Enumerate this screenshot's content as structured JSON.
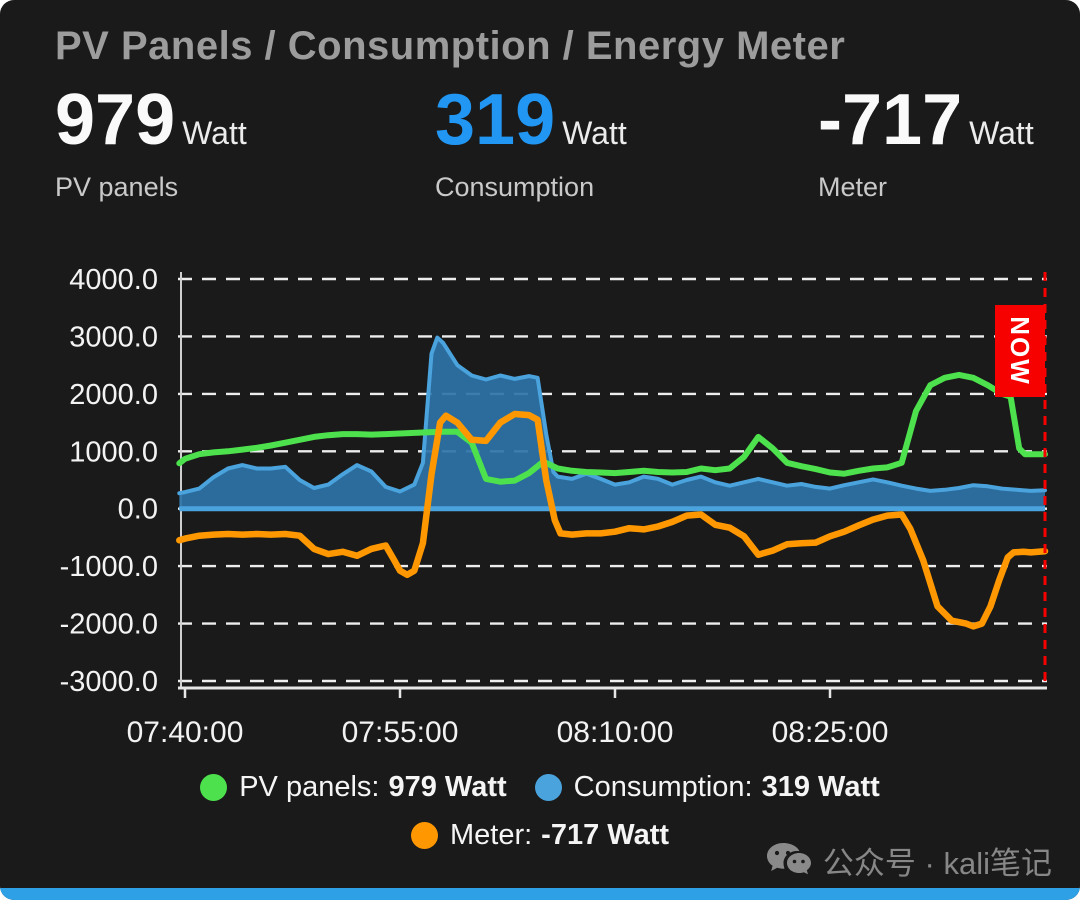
{
  "card": {
    "title": "PV Panels / Consumption / Energy Meter"
  },
  "stats": [
    {
      "value": "979",
      "unit": "Watt",
      "label": "PV panels",
      "color": "#fafafa"
    },
    {
      "value": "319",
      "unit": "Watt",
      "label": "Consumption",
      "color": "#2196f3"
    },
    {
      "value": "-717",
      "unit": "Watt",
      "label": "Meter",
      "color": "#fafafa"
    }
  ],
  "chart_data": {
    "type": "area",
    "title": "",
    "grid": "dashed-horizontal",
    "legend_position": "bottom",
    "x_axis": {
      "tick_minutes": [
        0,
        15,
        30,
        45
      ],
      "tick_labels": [
        "07:40:00",
        "07:55:00",
        "08:10:00",
        "08:25:00"
      ],
      "range_minutes": [
        -0.4,
        60
      ]
    },
    "y_axis": {
      "ticks": [
        4000,
        3000,
        2000,
        1000,
        0,
        -1000,
        -2000,
        -3000
      ],
      "tick_labels": [
        "4000.0",
        "3000.0",
        "2000.0",
        "1000.0",
        "0.0",
        "-1000.0",
        "-2000.0",
        "-3000.0"
      ],
      "ylim": [
        -3150,
        4150
      ]
    },
    "now_marker": {
      "label": "NOW",
      "x_minutes": 60,
      "color": "#f60000"
    },
    "series": [
      {
        "name": "PV panels",
        "unit": "Watt",
        "current": 979,
        "style": "line",
        "color": "#4de24d",
        "points": [
          [
            -0.4,
            790
          ],
          [
            0,
            870
          ],
          [
            1,
            950
          ],
          [
            2,
            980
          ],
          [
            3,
            1000
          ],
          [
            4,
            1030
          ],
          [
            5,
            1060
          ],
          [
            6,
            1100
          ],
          [
            7,
            1150
          ],
          [
            8,
            1200
          ],
          [
            9,
            1250
          ],
          [
            10,
            1280
          ],
          [
            11,
            1300
          ],
          [
            12,
            1300
          ],
          [
            13,
            1290
          ],
          [
            14,
            1300
          ],
          [
            15,
            1310
          ],
          [
            16,
            1320
          ],
          [
            17,
            1330
          ],
          [
            18,
            1340
          ],
          [
            19,
            1340
          ],
          [
            20,
            1150
          ],
          [
            21,
            520
          ],
          [
            22,
            470
          ],
          [
            23,
            490
          ],
          [
            24,
            620
          ],
          [
            25,
            820
          ],
          [
            26,
            700
          ],
          [
            27,
            660
          ],
          [
            28,
            640
          ],
          [
            29,
            630
          ],
          [
            30,
            620
          ],
          [
            31,
            640
          ],
          [
            32,
            660
          ],
          [
            33,
            640
          ],
          [
            34,
            630
          ],
          [
            35,
            640
          ],
          [
            36,
            700
          ],
          [
            37,
            670
          ],
          [
            38,
            700
          ],
          [
            39,
            900
          ],
          [
            40,
            1250
          ],
          [
            41,
            1050
          ],
          [
            42,
            800
          ],
          [
            43,
            740
          ],
          [
            44,
            690
          ],
          [
            45,
            630
          ],
          [
            46,
            610
          ],
          [
            47,
            660
          ],
          [
            48,
            700
          ],
          [
            49,
            720
          ],
          [
            50,
            800
          ],
          [
            51,
            1700
          ],
          [
            52,
            2150
          ],
          [
            53,
            2280
          ],
          [
            54,
            2330
          ],
          [
            55,
            2280
          ],
          [
            56,
            2150
          ],
          [
            57,
            2000
          ],
          [
            57.6,
            1950
          ],
          [
            58.2,
            1050
          ],
          [
            58.6,
            950
          ],
          [
            60,
            950
          ]
        ]
      },
      {
        "name": "Consumption",
        "unit": "Watt",
        "current": 319,
        "style": "area",
        "color": "#4aa3dd",
        "fill": "rgba(45,115,168,0.92)",
        "points": [
          [
            -0.4,
            270
          ],
          [
            0,
            290
          ],
          [
            1,
            350
          ],
          [
            2,
            550
          ],
          [
            3,
            700
          ],
          [
            4,
            760
          ],
          [
            5,
            700
          ],
          [
            6,
            700
          ],
          [
            7,
            730
          ],
          [
            8,
            500
          ],
          [
            9,
            360
          ],
          [
            10,
            420
          ],
          [
            11,
            600
          ],
          [
            12,
            760
          ],
          [
            13,
            650
          ],
          [
            14,
            380
          ],
          [
            15,
            300
          ],
          [
            16,
            420
          ],
          [
            16.6,
            800
          ],
          [
            17.2,
            2700
          ],
          [
            17.6,
            2980
          ],
          [
            18,
            2890
          ],
          [
            19,
            2500
          ],
          [
            20,
            2320
          ],
          [
            21,
            2250
          ],
          [
            22,
            2320
          ],
          [
            23,
            2260
          ],
          [
            24,
            2310
          ],
          [
            24.6,
            2280
          ],
          [
            25.2,
            1300
          ],
          [
            25.7,
            640
          ],
          [
            26,
            560
          ],
          [
            27,
            520
          ],
          [
            28,
            610
          ],
          [
            29,
            520
          ],
          [
            30,
            420
          ],
          [
            31,
            460
          ],
          [
            32,
            560
          ],
          [
            33,
            520
          ],
          [
            34,
            420
          ],
          [
            35,
            500
          ],
          [
            36,
            560
          ],
          [
            37,
            460
          ],
          [
            38,
            400
          ],
          [
            39,
            460
          ],
          [
            40,
            520
          ],
          [
            41,
            460
          ],
          [
            42,
            400
          ],
          [
            43,
            430
          ],
          [
            44,
            380
          ],
          [
            45,
            350
          ],
          [
            46,
            410
          ],
          [
            47,
            460
          ],
          [
            48,
            510
          ],
          [
            49,
            460
          ],
          [
            50,
            400
          ],
          [
            51,
            350
          ],
          [
            52,
            310
          ],
          [
            53,
            330
          ],
          [
            54,
            360
          ],
          [
            55,
            410
          ],
          [
            56,
            390
          ],
          [
            57,
            350
          ],
          [
            58,
            330
          ],
          [
            59,
            310
          ],
          [
            60,
            320
          ]
        ]
      },
      {
        "name": "Meter",
        "unit": "Watt",
        "current": -717,
        "style": "line",
        "color": "#ff9800",
        "points": [
          [
            -0.4,
            -550
          ],
          [
            0,
            -520
          ],
          [
            1,
            -470
          ],
          [
            2,
            -450
          ],
          [
            3,
            -440
          ],
          [
            4,
            -450
          ],
          [
            5,
            -440
          ],
          [
            6,
            -450
          ],
          [
            7,
            -440
          ],
          [
            8,
            -470
          ],
          [
            9,
            -700
          ],
          [
            10,
            -790
          ],
          [
            11,
            -750
          ],
          [
            12,
            -820
          ],
          [
            13,
            -700
          ],
          [
            14,
            -640
          ],
          [
            14.6,
            -900
          ],
          [
            15,
            -1080
          ],
          [
            15.5,
            -1150
          ],
          [
            16,
            -1080
          ],
          [
            16.6,
            -600
          ],
          [
            17.2,
            600
          ],
          [
            17.8,
            1500
          ],
          [
            18.2,
            1620
          ],
          [
            19,
            1500
          ],
          [
            20,
            1200
          ],
          [
            21,
            1180
          ],
          [
            22,
            1500
          ],
          [
            23,
            1650
          ],
          [
            24,
            1630
          ],
          [
            24.6,
            1550
          ],
          [
            25.2,
            500
          ],
          [
            25.8,
            -200
          ],
          [
            26.2,
            -430
          ],
          [
            27,
            -450
          ],
          [
            28,
            -430
          ],
          [
            29,
            -430
          ],
          [
            30,
            -400
          ],
          [
            31,
            -340
          ],
          [
            32,
            -360
          ],
          [
            33,
            -310
          ],
          [
            34,
            -230
          ],
          [
            35,
            -120
          ],
          [
            36,
            -100
          ],
          [
            37,
            -280
          ],
          [
            38,
            -330
          ],
          [
            39,
            -480
          ],
          [
            40,
            -800
          ],
          [
            41,
            -730
          ],
          [
            42,
            -620
          ],
          [
            43,
            -600
          ],
          [
            44,
            -590
          ],
          [
            45,
            -480
          ],
          [
            46,
            -400
          ],
          [
            47,
            -290
          ],
          [
            48,
            -190
          ],
          [
            49,
            -120
          ],
          [
            50,
            -100
          ],
          [
            50.6,
            -350
          ],
          [
            51.5,
            -900
          ],
          [
            52.5,
            -1700
          ],
          [
            53.5,
            -1950
          ],
          [
            54.5,
            -2000
          ],
          [
            55,
            -2050
          ],
          [
            55.6,
            -2000
          ],
          [
            56.2,
            -1700
          ],
          [
            56.8,
            -1250
          ],
          [
            57.4,
            -850
          ],
          [
            57.8,
            -760
          ],
          [
            58.5,
            -750
          ],
          [
            59,
            -760
          ],
          [
            60,
            -740
          ]
        ]
      }
    ]
  },
  "legend": {
    "items": [
      {
        "label": "PV panels:",
        "value": "979 Watt",
        "color": "#4de24d"
      },
      {
        "label": "Consumption:",
        "value": "319 Watt",
        "color": "#4aa3dd"
      },
      {
        "label": "Meter:",
        "value": "-717 Watt",
        "color": "#ff9800"
      }
    ]
  },
  "watermark": {
    "icon": "wechat-icon",
    "text": "公众号 · kali笔记"
  },
  "accent": {
    "bottom_bar_color": "#2ea1e6",
    "value_blue": "#2196f3",
    "background": "#1a1a1a"
  }
}
